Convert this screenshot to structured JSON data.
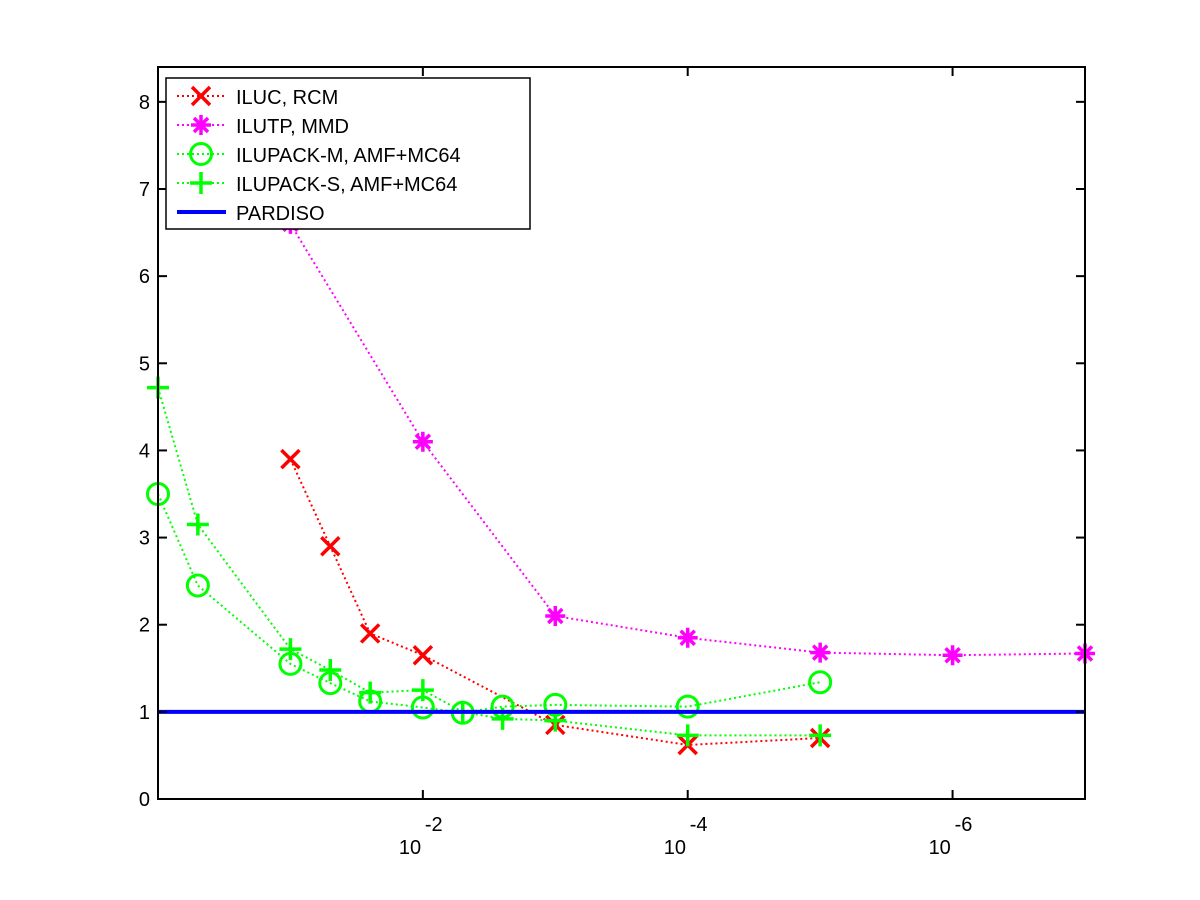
{
  "chart_data": {
    "type": "line",
    "title": "",
    "xlabel": "",
    "ylabel": "",
    "x_scale": "log",
    "x_reversed": true,
    "xlim": [
      1,
      1e-07
    ],
    "ylim": [
      0,
      8.4
    ],
    "grid": false,
    "legend_position": "top-left",
    "x_ticks": [
      {
        "value": 0.01,
        "base": "10",
        "exponent": "-2"
      },
      {
        "value": 0.0001,
        "base": "10",
        "exponent": "-4"
      },
      {
        "value": 1e-06,
        "base": "10",
        "exponent": "-6"
      }
    ],
    "y_ticks": [
      "0",
      "1",
      "2",
      "3",
      "4",
      "5",
      "6",
      "7",
      "8"
    ],
    "series": [
      {
        "name": "ILUC, RCM",
        "color": "#ff0000",
        "marker": "x",
        "line": "dotted",
        "x": [
          0.1,
          0.05,
          0.025,
          0.01,
          0.001,
          0.0001,
          1e-05
        ],
        "y": [
          3.9,
          2.9,
          1.9,
          1.65,
          0.85,
          0.62,
          0.7
        ]
      },
      {
        "name": "ILUTP, MMD",
        "color": "#ff00ff",
        "marker": "star",
        "line": "dotted",
        "x": [
          0.1,
          0.01,
          0.001,
          0.0001,
          1e-05,
          1e-06,
          1e-07
        ],
        "y": [
          6.6,
          4.1,
          2.1,
          1.85,
          1.68,
          1.65,
          1.67
        ]
      },
      {
        "name": "ILUPACK-M, AMF+MC64",
        "color": "#00ff00",
        "marker": "circle",
        "line": "dotted",
        "x": [
          1,
          0.5,
          0.1,
          0.05,
          0.025,
          0.01,
          0.005,
          0.0025,
          0.001,
          0.0001,
          1e-05
        ],
        "y": [
          3.5,
          2.45,
          1.55,
          1.33,
          1.12,
          1.05,
          0.99,
          1.06,
          1.08,
          1.06,
          1.34
        ]
      },
      {
        "name": "ILUPACK-S, AMF+MC64",
        "color": "#00ff00",
        "marker": "plus",
        "line": "dotted",
        "x": [
          1,
          0.5,
          0.1,
          0.05,
          0.025,
          0.01,
          0.005,
          0.0025,
          0.001,
          0.0001,
          1e-05
        ],
        "y": [
          4.72,
          3.15,
          1.72,
          1.48,
          1.22,
          1.25,
          1.0,
          0.92,
          0.9,
          0.73,
          0.73
        ]
      },
      {
        "name": "PARDISO",
        "color": "#0000ff",
        "marker": "none",
        "line": "solid",
        "x": [
          1,
          1e-07
        ],
        "y": [
          1.0,
          1.0
        ]
      }
    ]
  }
}
